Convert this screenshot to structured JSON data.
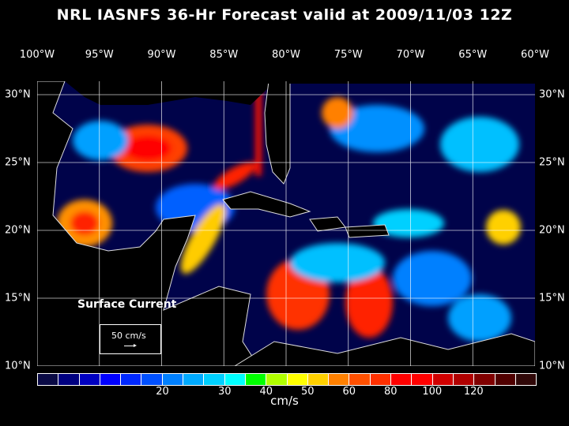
{
  "title": "NRL IASNFS  36-Hr Forecast valid at 2009/11/03 12Z",
  "lon_labels": [
    "100°W",
    "95°W",
    "90°W",
    "85°W",
    "80°W",
    "75°W",
    "70°W",
    "65°W",
    "60°W"
  ],
  "lat_labels": [
    "30°N",
    "25°N",
    "20°N",
    "15°N",
    "10°N"
  ],
  "field_label": "Surface Current",
  "reference_vector": "50 cm/s",
  "colorbar": {
    "units": "cm/s",
    "tick_labels": [
      "20",
      "30",
      "40",
      "50",
      "60",
      "80",
      "100",
      "120"
    ],
    "colors": [
      "#0a0a45",
      "#000080",
      "#0000c0",
      "#0000ff",
      "#0028ff",
      "#0050ff",
      "#0080ff",
      "#00aaff",
      "#00d0ff",
      "#00ffff",
      "#00ff00",
      "#b0ff00",
      "#ffff00",
      "#ffd000",
      "#ff8000",
      "#ff5000",
      "#ff3000",
      "#ff0000",
      "#ff0000",
      "#d00000",
      "#b00000",
      "#800000",
      "#500000",
      "#300808"
    ]
  }
}
